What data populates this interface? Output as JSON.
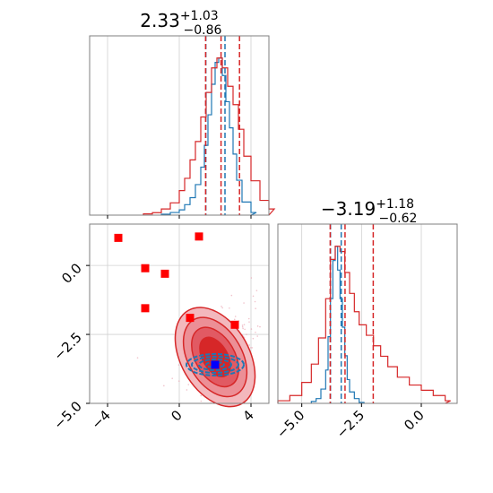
{
  "chart_data": [
    {
      "type": "histogram",
      "panel": "top-left marginal",
      "title": {
        "value": "2.33",
        "sup": "+1.03",
        "sub": "−0.86"
      },
      "xlim": [
        -5,
        5
      ],
      "grid": true,
      "bins": [
        -4.5,
        -4,
        -3.5,
        -3,
        -2.5,
        -2,
        -1.5,
        -1,
        -0.5,
        0,
        0.5,
        1,
        1.5,
        2,
        2.5,
        3,
        3.5,
        4,
        4.5,
        5
      ],
      "series": [
        {
          "color": "#1f77b4",
          "x": [
            -1,
            -0.5,
            0,
            0.3,
            0.6,
            0.9,
            1.2,
            1.4,
            1.6,
            1.8,
            2,
            2.2,
            2.4,
            2.6,
            2.8,
            3,
            3.2,
            3.5,
            4
          ],
          "y": [
            1,
            3,
            6,
            12,
            20,
            35,
            55,
            80,
            115,
            150,
            175,
            180,
            160,
            130,
            100,
            70,
            40,
            15,
            3
          ],
          "quantiles": [
            1.48,
            2.55
          ]
        },
        {
          "color": "#d62728",
          "x": [
            -2,
            -1.5,
            -1,
            -0.5,
            0,
            0.3,
            0.6,
            0.9,
            1.2,
            1.5,
            1.8,
            2.1,
            2.4,
            2.7,
            3,
            3.3,
            3.6,
            4,
            4.5,
            5
          ],
          "y": [
            1,
            2,
            5,
            10,
            20,
            30,
            45,
            60,
            80,
            100,
            120,
            128,
            120,
            105,
            90,
            70,
            48,
            28,
            12,
            5
          ],
          "quantiles": [
            1.47,
            2.33,
            3.36
          ]
        }
      ],
      "xticks": [
        -4,
        0,
        4
      ]
    },
    {
      "type": "scatter",
      "panel": "bottom-left joint",
      "xlim": [
        -5,
        5
      ],
      "ylim": [
        -5,
        1.5
      ],
      "grid": true,
      "xticks": [
        -4,
        0,
        4
      ],
      "yticks": [
        -5.0,
        -2.5,
        0.0
      ],
      "xtick_labels": [
        "−4",
        "0",
        "4"
      ],
      "ytick_labels": [
        "−5.0",
        "−2.5",
        "0.0"
      ],
      "markers": {
        "red_squares": [
          [
            -3.4,
            1.0
          ],
          [
            1.1,
            1.05
          ],
          [
            -1.9,
            -0.1
          ],
          [
            -0.8,
            -0.3
          ],
          [
            -1.9,
            -1.55
          ],
          [
            0.6,
            -1.9
          ],
          [
            3.1,
            -2.15
          ]
        ],
        "blue_square": [
          2.0,
          -3.6
        ]
      },
      "red_contour_center": [
        2.3,
        -3.19
      ],
      "blue_contour_center": [
        2.0,
        -3.6
      ]
    },
    {
      "type": "histogram",
      "panel": "bottom-right marginal",
      "title": {
        "value": "−3.19",
        "sup": "+1.18",
        "sub": "−0.62"
      },
      "xlim": [
        -6,
        1.5
      ],
      "grid": true,
      "xticks": [
        -5.0,
        -2.5,
        0.0
      ],
      "xtick_labels": [
        "−5.0",
        "−2.5",
        "0.0"
      ],
      "series": [
        {
          "color": "#1f77b4",
          "x": [
            -4.6,
            -4.4,
            -4.2,
            -4.0,
            -3.9,
            -3.8,
            -3.7,
            -3.6,
            -3.5,
            -3.4,
            -3.3,
            -3.2,
            -3.1,
            -3.0,
            -2.8,
            -2.6
          ],
          "y": [
            2,
            5,
            15,
            35,
            70,
            110,
            150,
            165,
            140,
            110,
            80,
            50,
            25,
            12,
            5,
            1
          ],
          "quantiles": [
            -3.8,
            -3.35
          ]
        },
        {
          "color": "#d62728",
          "x": [
            -6,
            -5.5,
            -5,
            -4.6,
            -4.3,
            -4,
            -3.8,
            -3.6,
            -3.4,
            -3.2,
            -3,
            -2.8,
            -2.6,
            -2.3,
            -2,
            -1.7,
            -1.4,
            -1,
            -0.5,
            0,
            0.5,
            1
          ],
          "y": [
            1,
            3,
            8,
            15,
            25,
            40,
            55,
            60,
            58,
            50,
            42,
            35,
            30,
            26,
            22,
            18,
            14,
            10,
            7,
            5,
            3,
            1
          ],
          "quantiles": [
            -3.81,
            -3.19,
            -2.01
          ]
        }
      ]
    }
  ]
}
